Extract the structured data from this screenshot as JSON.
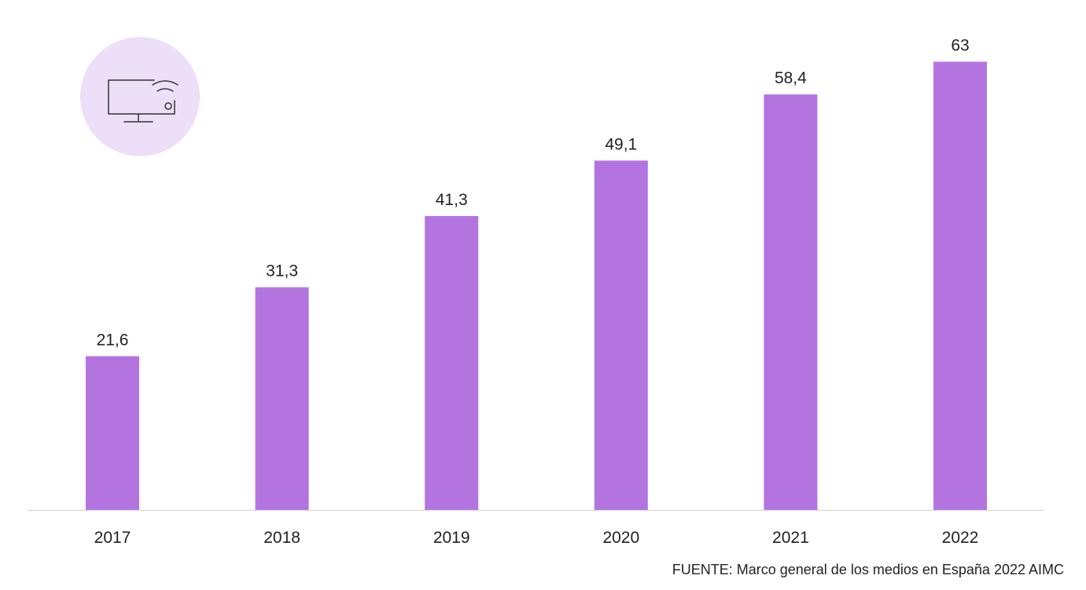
{
  "chart_data": {
    "type": "bar",
    "categories": [
      "2017",
      "2018",
      "2019",
      "2020",
      "2021",
      "2022"
    ],
    "values": [
      21.6,
      31.3,
      41.3,
      49.1,
      58.4,
      63
    ],
    "value_labels": [
      "21,6",
      "31,3",
      "41,3",
      "49,1",
      "58,4",
      "63"
    ],
    "title": "",
    "xlabel": "",
    "ylabel": "",
    "ylim": [
      0,
      70
    ],
    "grid": false,
    "legend": "none"
  },
  "icon": {
    "name": "smart-tv-icon"
  },
  "source": {
    "text": "FUENTE: Marco general de los medios en España 2022 AIMC"
  },
  "colors": {
    "bar": "#b474e0",
    "axis": "#d0d0d0",
    "text": "#222222",
    "icon_circle": "#ecdff7",
    "icon_stroke": "#333333"
  }
}
